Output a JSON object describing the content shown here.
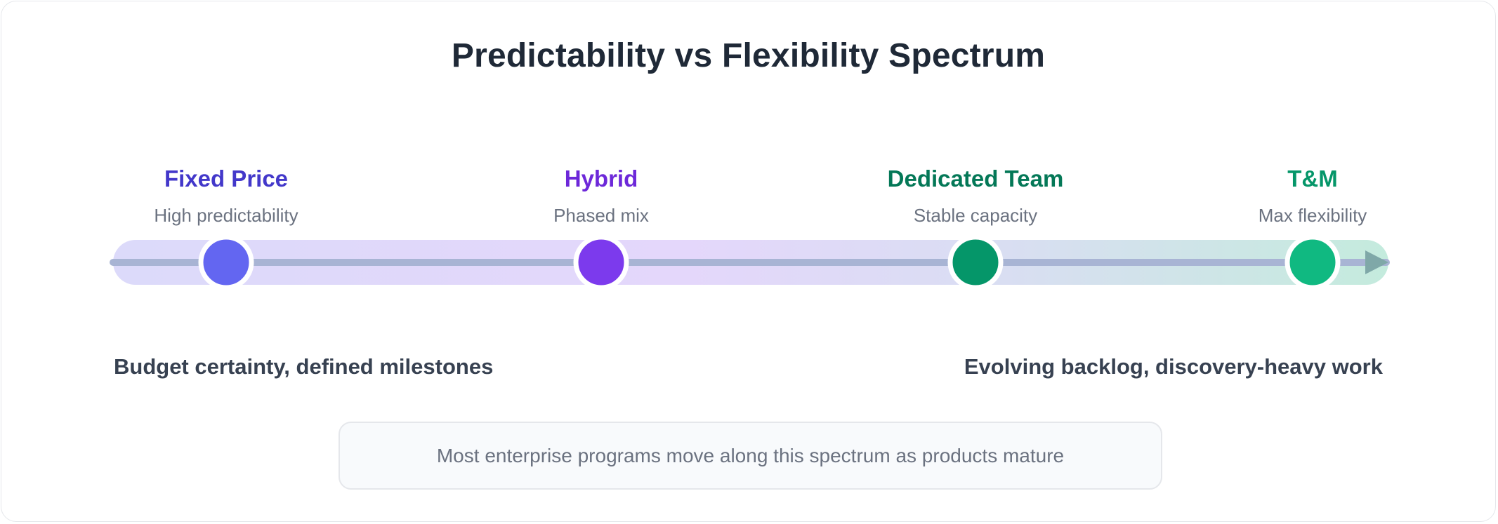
{
  "title": "Predictability vs Flexibility Spectrum",
  "stages": [
    {
      "name": "Fixed Price",
      "description": "High predictability",
      "color": "#4338ca",
      "dot_color": "#6366f1"
    },
    {
      "name": "Hybrid",
      "description": "Phased mix",
      "color": "#6d28d9",
      "dot_color": "#7c3aed"
    },
    {
      "name": "Dedicated Team",
      "description": "Stable capacity",
      "color": "#047857",
      "dot_color": "#059669"
    },
    {
      "name": "T&M",
      "description": "Max flexibility",
      "color": "#059669",
      "dot_color": "#10b981"
    }
  ],
  "left_end_label": "Budget certainty, defined milestones",
  "right_end_label": "Evolving backlog, discovery-heavy work",
  "footer_note": "Most enterprise programs move along this spectrum as products mature",
  "colors": {
    "band_start": "#dcdafa",
    "band_mid": "#e4d7fb",
    "band_end": "#c4ebdd",
    "axis_line": "#a8b4d4",
    "arrow": "#7fa8a8"
  }
}
